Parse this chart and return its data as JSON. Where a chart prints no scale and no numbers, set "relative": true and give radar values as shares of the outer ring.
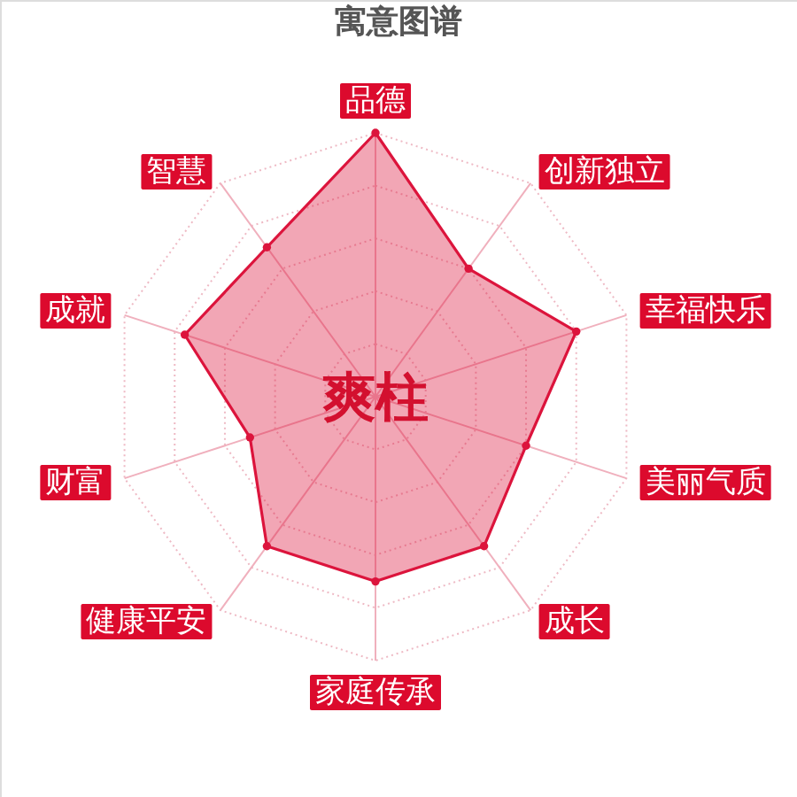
{
  "chart_data": {
    "type": "radar",
    "title": "寓意图谱",
    "categories": [
      "品德",
      "创新独立",
      "幸福快乐",
      "美丽气质",
      "成长",
      "家庭传承",
      "健康平安",
      "财富",
      "成就",
      "智慧"
    ],
    "series": [
      {
        "color": "#dc143c",
        "values": [
          1.0,
          0.6,
          0.8,
          0.6,
          0.7,
          0.7,
          0.7,
          0.5,
          0.76,
          0.7
        ]
      }
    ],
    "relative": true,
    "grid": true,
    "marker": "circle",
    "annotations": [
      "爽柱"
    ]
  }
}
